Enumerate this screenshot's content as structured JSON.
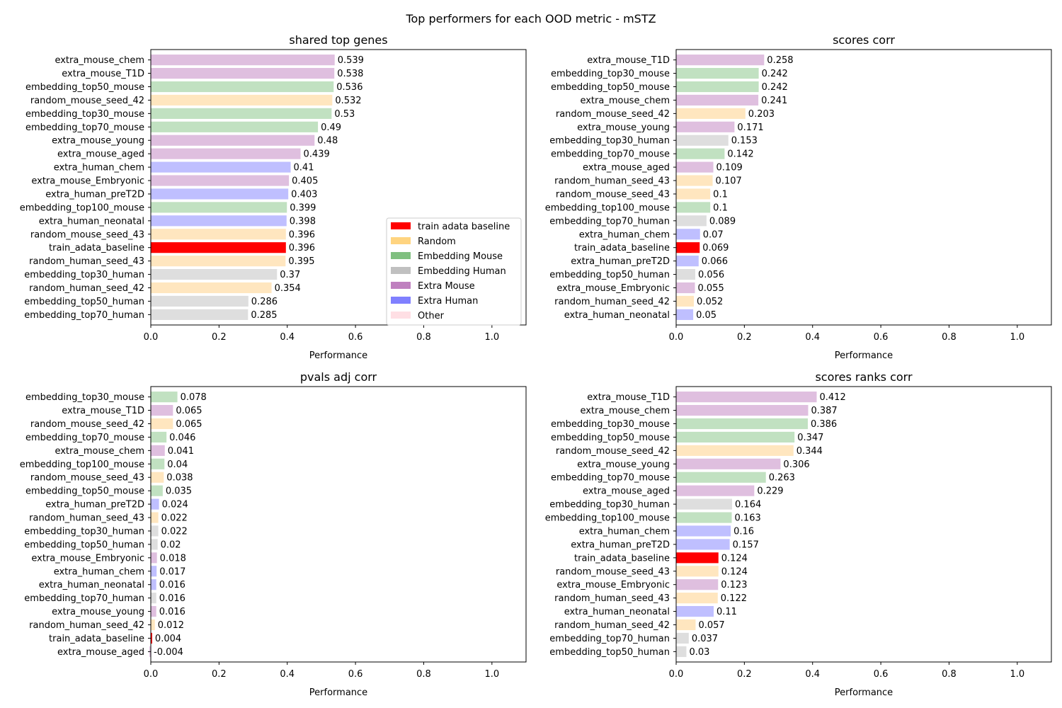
{
  "figure_title": "Top performers for each OOD metric - mSTZ",
  "colors": {
    "baseline": "#ff0000",
    "random": "#ffe6bf",
    "embedding_mouse": "#c1e1c1",
    "embedding_human": "#dedede",
    "extra_mouse": "#dfbfdf",
    "extra_human": "#bfbfff",
    "legend": {
      "train adata baseline": "#ff0000",
      "Random": "#ffd480",
      "Embedding Mouse": "#80c080",
      "Embedding Human": "#c0c0c0",
      "Extra Mouse": "#bf80bf",
      "Extra Human": "#8080ff",
      "Other": "#ffdfe4"
    }
  },
  "legend": {
    "location": "lower right of first panel",
    "entries": [
      {
        "label": "train adata baseline",
        "group": "baseline"
      },
      {
        "label": "Random",
        "group": "random"
      },
      {
        "label": "Embedding Mouse",
        "group": "embedding_mouse"
      },
      {
        "label": "Embedding Human",
        "group": "embedding_human"
      },
      {
        "label": "Extra Mouse",
        "group": "extra_mouse"
      },
      {
        "label": "Extra Human",
        "group": "extra_human"
      },
      {
        "label": "Other",
        "group": "other"
      }
    ]
  },
  "chart_data": [
    {
      "type": "bar",
      "orientation": "horizontal",
      "title": "shared top genes",
      "xlabel": "Performance",
      "xlim": [
        0,
        1.1
      ],
      "xticks": [
        "0.0",
        "0.2",
        "0.4",
        "0.6",
        "0.8",
        "1.0"
      ],
      "categories": [
        "extra_mouse_chem",
        "extra_mouse_T1D",
        "embedding_top50_mouse",
        "random_mouse_seed_42",
        "embedding_top30_mouse",
        "embedding_top70_mouse",
        "extra_mouse_young",
        "extra_mouse_aged",
        "extra_human_chem",
        "extra_mouse_Embryonic",
        "extra_human_preT2D",
        "embedding_top100_mouse",
        "extra_human_neonatal",
        "random_mouse_seed_43",
        "train_adata_baseline",
        "random_human_seed_43",
        "embedding_top30_human",
        "random_human_seed_42",
        "embedding_top50_human",
        "embedding_top70_human"
      ],
      "values": [
        0.539,
        0.538,
        0.536,
        0.532,
        0.53,
        0.49,
        0.48,
        0.439,
        0.41,
        0.405,
        0.403,
        0.399,
        0.398,
        0.396,
        0.396,
        0.395,
        0.37,
        0.354,
        0.286,
        0.285
      ],
      "value_labels": [
        "0.539",
        "0.538",
        "0.536",
        "0.532",
        "0.53",
        "0.49",
        "0.48",
        "0.439",
        "0.41",
        "0.405",
        "0.403",
        "0.399",
        "0.398",
        "0.396",
        "0.396",
        "0.395",
        "0.37",
        "0.354",
        "0.286",
        "0.285"
      ],
      "groups": [
        "extra_mouse",
        "extra_mouse",
        "embedding_mouse",
        "random",
        "embedding_mouse",
        "embedding_mouse",
        "extra_mouse",
        "extra_mouse",
        "extra_human",
        "extra_mouse",
        "extra_human",
        "embedding_mouse",
        "extra_human",
        "random",
        "baseline",
        "random",
        "embedding_human",
        "random",
        "embedding_human",
        "embedding_human"
      ],
      "show_legend": true
    },
    {
      "type": "bar",
      "orientation": "horizontal",
      "title": "scores corr",
      "xlabel": "Performance",
      "xlim": [
        0,
        1.1
      ],
      "xticks": [
        "0.0",
        "0.2",
        "0.4",
        "0.6",
        "0.8",
        "1.0"
      ],
      "categories": [
        "extra_mouse_T1D",
        "embedding_top30_mouse",
        "embedding_top50_mouse",
        "extra_mouse_chem",
        "random_mouse_seed_42",
        "extra_mouse_young",
        "embedding_top30_human",
        "embedding_top70_mouse",
        "extra_mouse_aged",
        "random_human_seed_43",
        "random_mouse_seed_43",
        "embedding_top100_mouse",
        "embedding_top70_human",
        "extra_human_chem",
        "train_adata_baseline",
        "extra_human_preT2D",
        "embedding_top50_human",
        "extra_mouse_Embryonic",
        "random_human_seed_42",
        "extra_human_neonatal"
      ],
      "values": [
        0.258,
        0.242,
        0.242,
        0.241,
        0.203,
        0.171,
        0.153,
        0.142,
        0.109,
        0.107,
        0.1,
        0.1,
        0.089,
        0.07,
        0.069,
        0.066,
        0.056,
        0.055,
        0.052,
        0.05
      ],
      "value_labels": [
        "0.258",
        "0.242",
        "0.242",
        "0.241",
        "0.203",
        "0.171",
        "0.153",
        "0.142",
        "0.109",
        "0.107",
        "0.1",
        "0.1",
        "0.089",
        "0.07",
        "0.069",
        "0.066",
        "0.056",
        "0.055",
        "0.052",
        "0.05"
      ],
      "groups": [
        "extra_mouse",
        "embedding_mouse",
        "embedding_mouse",
        "extra_mouse",
        "random",
        "extra_mouse",
        "embedding_human",
        "embedding_mouse",
        "extra_mouse",
        "random",
        "random",
        "embedding_mouse",
        "embedding_human",
        "extra_human",
        "baseline",
        "extra_human",
        "embedding_human",
        "extra_mouse",
        "random",
        "extra_human"
      ],
      "show_legend": false
    },
    {
      "type": "bar",
      "orientation": "horizontal",
      "title": "pvals adj corr",
      "xlabel": "Performance",
      "xlim": [
        0,
        1.1
      ],
      "xticks": [
        "0.0",
        "0.2",
        "0.4",
        "0.6",
        "0.8",
        "1.0"
      ],
      "categories": [
        "embedding_top30_mouse",
        "extra_mouse_T1D",
        "random_mouse_seed_42",
        "embedding_top70_mouse",
        "extra_mouse_chem",
        "embedding_top100_mouse",
        "random_mouse_seed_43",
        "embedding_top50_mouse",
        "extra_human_preT2D",
        "random_human_seed_43",
        "embedding_top30_human",
        "embedding_top50_human",
        "extra_mouse_Embryonic",
        "extra_human_chem",
        "extra_human_neonatal",
        "embedding_top70_human",
        "extra_mouse_young",
        "random_human_seed_42",
        "train_adata_baseline",
        "extra_mouse_aged"
      ],
      "values": [
        0.078,
        0.065,
        0.065,
        0.046,
        0.041,
        0.04,
        0.038,
        0.035,
        0.024,
        0.022,
        0.022,
        0.02,
        0.018,
        0.017,
        0.016,
        0.016,
        0.016,
        0.012,
        0.004,
        -0.004
      ],
      "value_labels": [
        "0.078",
        "0.065",
        "0.065",
        "0.046",
        "0.041",
        "0.04",
        "0.038",
        "0.035",
        "0.024",
        "0.022",
        "0.022",
        "0.02",
        "0.018",
        "0.017",
        "0.016",
        "0.016",
        "0.016",
        "0.012",
        "0.004",
        "-0.004"
      ],
      "groups": [
        "embedding_mouse",
        "extra_mouse",
        "random",
        "embedding_mouse",
        "extra_mouse",
        "embedding_mouse",
        "random",
        "embedding_mouse",
        "extra_human",
        "random",
        "embedding_human",
        "embedding_human",
        "extra_mouse",
        "extra_human",
        "extra_human",
        "embedding_human",
        "extra_mouse",
        "random",
        "baseline",
        "extra_mouse"
      ],
      "show_legend": false
    },
    {
      "type": "bar",
      "orientation": "horizontal",
      "title": "scores ranks corr",
      "xlabel": "Performance",
      "xlim": [
        0,
        1.1
      ],
      "xticks": [
        "0.0",
        "0.2",
        "0.4",
        "0.6",
        "0.8",
        "1.0"
      ],
      "categories": [
        "extra_mouse_T1D",
        "extra_mouse_chem",
        "embedding_top30_mouse",
        "embedding_top50_mouse",
        "random_mouse_seed_42",
        "extra_mouse_young",
        "embedding_top70_mouse",
        "extra_mouse_aged",
        "embedding_top30_human",
        "embedding_top100_mouse",
        "extra_human_chem",
        "extra_human_preT2D",
        "train_adata_baseline",
        "random_mouse_seed_43",
        "extra_mouse_Embryonic",
        "random_human_seed_43",
        "extra_human_neonatal",
        "random_human_seed_42",
        "embedding_top70_human",
        "embedding_top50_human"
      ],
      "values": [
        0.412,
        0.387,
        0.386,
        0.347,
        0.344,
        0.306,
        0.263,
        0.229,
        0.164,
        0.163,
        0.16,
        0.157,
        0.124,
        0.124,
        0.123,
        0.122,
        0.11,
        0.057,
        0.037,
        0.03
      ],
      "value_labels": [
        "0.412",
        "0.387",
        "0.386",
        "0.347",
        "0.344",
        "0.306",
        "0.263",
        "0.229",
        "0.164",
        "0.163",
        "0.16",
        "0.157",
        "0.124",
        "0.124",
        "0.123",
        "0.122",
        "0.11",
        "0.057",
        "0.037",
        "0.03"
      ],
      "groups": [
        "extra_mouse",
        "extra_mouse",
        "embedding_mouse",
        "embedding_mouse",
        "random",
        "extra_mouse",
        "embedding_mouse",
        "extra_mouse",
        "embedding_human",
        "embedding_mouse",
        "extra_human",
        "extra_human",
        "baseline",
        "random",
        "extra_mouse",
        "random",
        "extra_human",
        "random",
        "embedding_human",
        "embedding_human"
      ],
      "show_legend": false
    }
  ]
}
